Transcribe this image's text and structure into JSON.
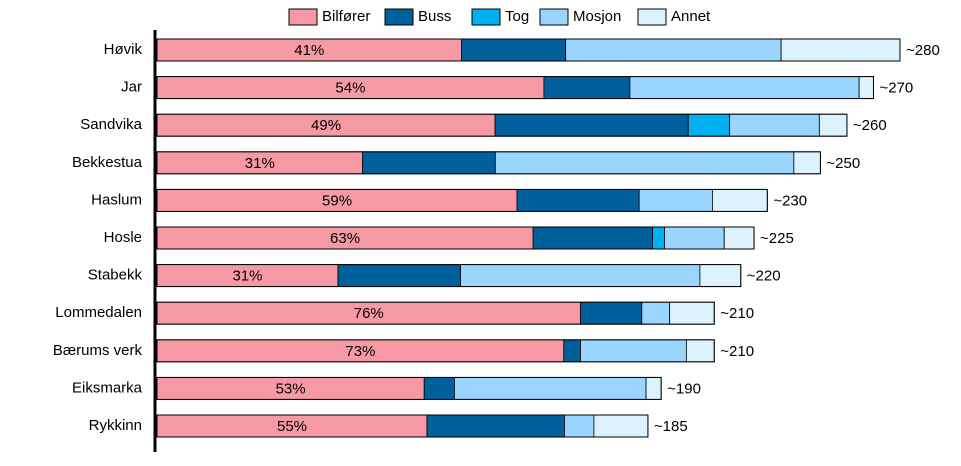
{
  "chart_data": {
    "type": "bar",
    "orientation": "horizontal",
    "stacked": true,
    "categories": [
      "Høvik",
      "Jar",
      "Sandvika",
      "Bekkestua",
      "Haslum",
      "Hosle",
      "Stabekk",
      "Lommedalen",
      "Bærums verk",
      "Eiksmarka",
      "Rykkinn"
    ],
    "series": [
      {
        "name": "Bilfører",
        "color": "#f59aa5",
        "values": [
          41,
          54,
          49,
          31,
          59,
          63,
          31,
          76,
          73,
          53,
          55
        ],
        "value_labels": [
          "41%",
          "54%",
          "49%",
          "31%",
          "59%",
          "63%",
          "31%",
          "76%",
          "73%",
          "53%",
          "55%"
        ]
      },
      {
        "name": "Buss",
        "color": "#00609c",
        "values": [
          14,
          12,
          28,
          20,
          20,
          20,
          21,
          11,
          3,
          6,
          28
        ]
      },
      {
        "name": "Tog",
        "color": "#00b0f0",
        "values": [
          0,
          0,
          6,
          0,
          0,
          2,
          0,
          0,
          0,
          0,
          0
        ]
      },
      {
        "name": "Mosjon",
        "color": "#99d5ff",
        "values": [
          29,
          32,
          13,
          45,
          12,
          10,
          41,
          5,
          19,
          38,
          6
        ]
      },
      {
        "name": "Annet",
        "color": "#dcf2ff",
        "values": [
          16,
          2,
          4,
          4,
          9,
          5,
          7,
          8,
          5,
          3,
          11
        ]
      }
    ],
    "totals": {
      "values": [
        280,
        270,
        260,
        250,
        230,
        225,
        220,
        210,
        210,
        190,
        185
      ],
      "value_labels": [
        "~280",
        "~270",
        "~260",
        "~250",
        "~230",
        "~225",
        "~220",
        "~210",
        "~210",
        "~190",
        "~185"
      ]
    },
    "legend": "top"
  }
}
